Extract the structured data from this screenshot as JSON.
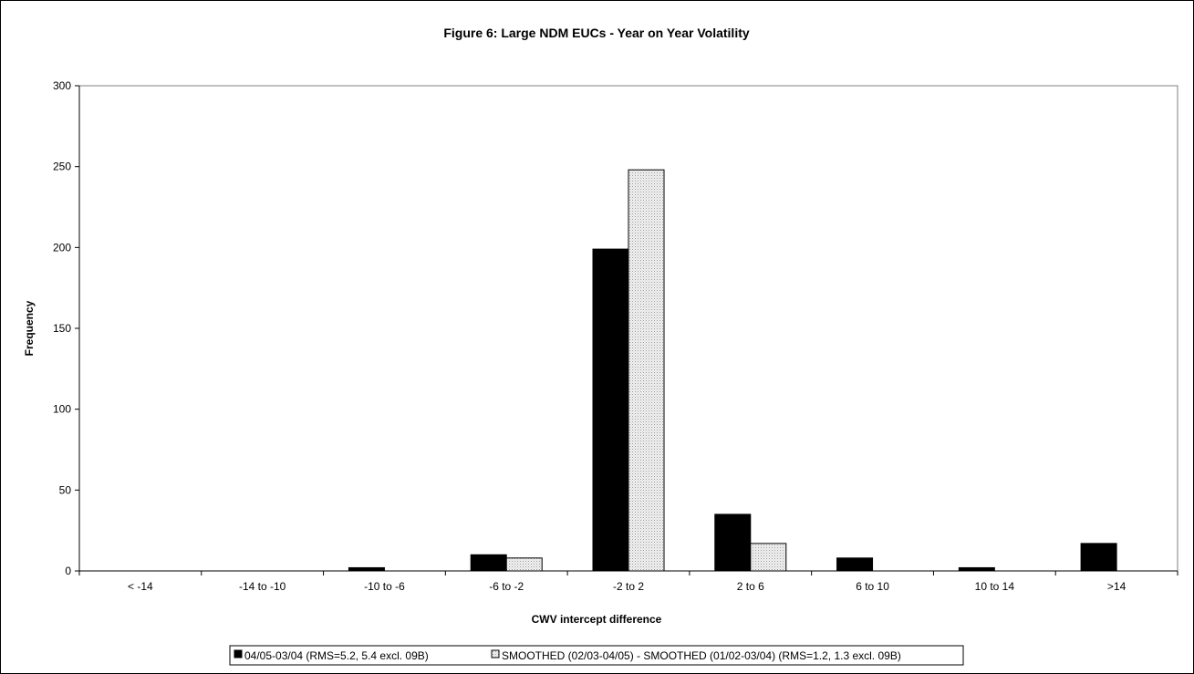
{
  "chart_data": {
    "type": "bar",
    "title": "Figure 6: Large NDM EUCs - Year on Year Volatility",
    "xlabel": "CWV intercept difference",
    "ylabel": "Frequency",
    "ylim": [
      0,
      300
    ],
    "yticks": [
      0,
      50,
      100,
      150,
      200,
      250,
      300
    ],
    "grid": false,
    "legend_position": "bottom",
    "categories": [
      "< -14",
      "-14 to -10",
      "-10 to -6",
      "-6 to -2",
      "-2 to 2",
      "2 to 6",
      "6 to 10",
      "10 to 14",
      ">14"
    ],
    "series": [
      {
        "name": "04/05-03/04 (RMS=5.2, 5.4 excl. 09B)",
        "color": "#000000",
        "values": [
          0,
          0,
          2,
          10,
          199,
          35,
          8,
          2,
          17
        ]
      },
      {
        "name": "SMOOTHED (02/03-04/05) - SMOOTHED (01/02-03/04) (RMS=1.2, 1.3 excl. 09B)",
        "color": "#e6e6e6",
        "values": [
          0,
          0,
          0,
          8,
          248,
          17,
          0,
          0,
          0
        ]
      }
    ]
  }
}
